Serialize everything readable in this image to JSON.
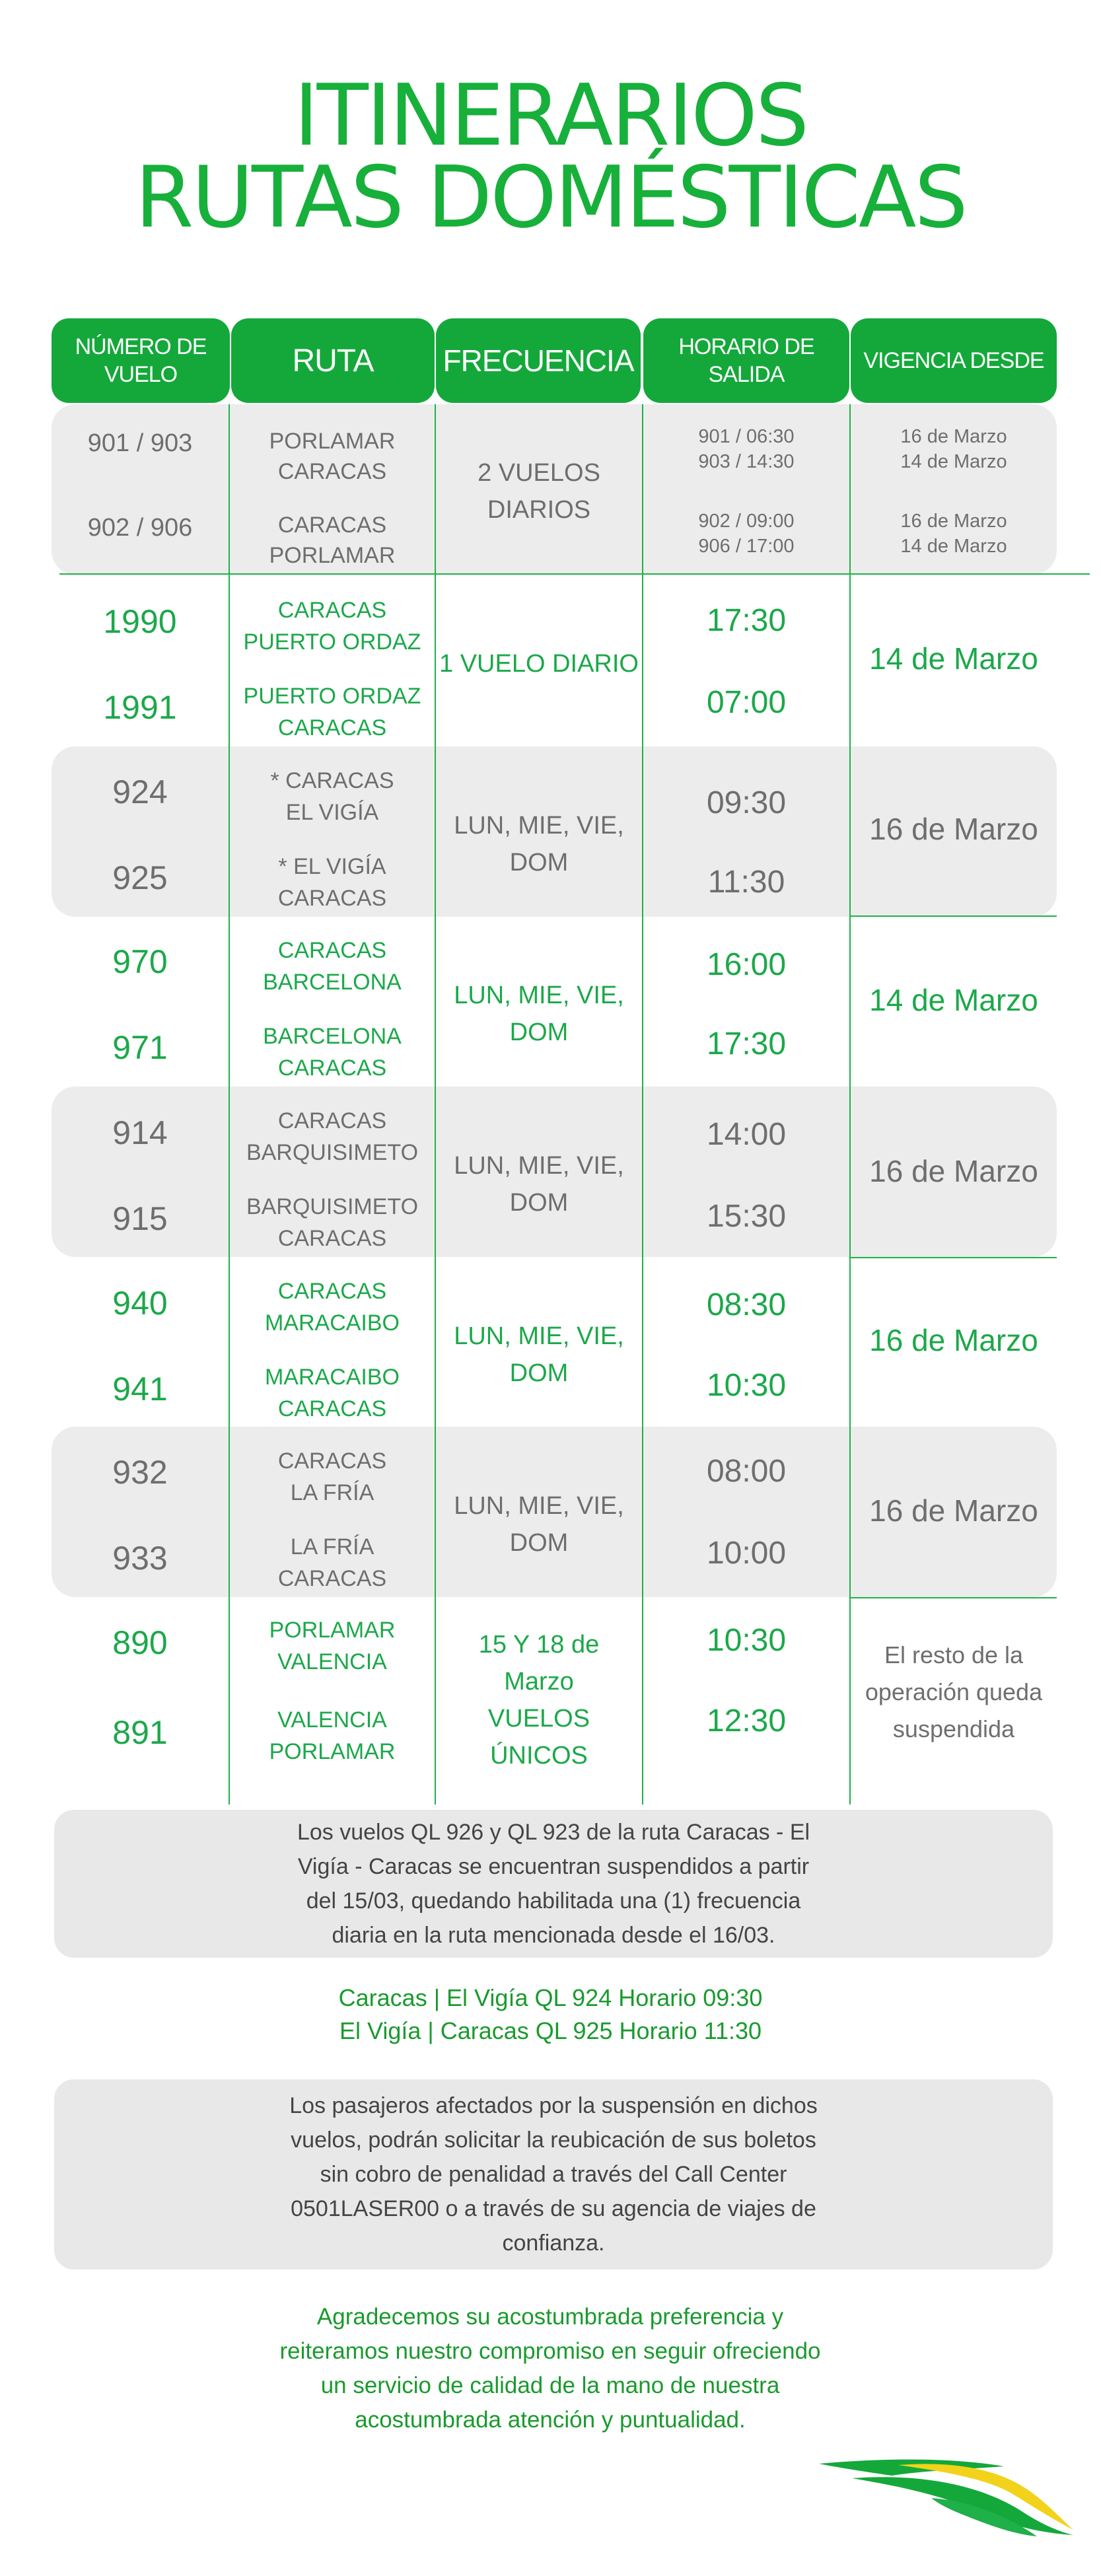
{
  "title": {
    "line1": "ITINERARIOS",
    "line2": "RUTAS DOMÉSTICAS"
  },
  "headers": {
    "flight_l1": "NÚMERO DE",
    "flight_l2": "VUELO",
    "route": "RUTA",
    "frequency": "FRECUENCIA",
    "time_l1": "HORARIO DE",
    "time_l2": "SALIDA",
    "validity": "VIGENCIA DESDE"
  },
  "rows": {
    "r0": {
      "f1": "901 / 903",
      "f2": "902 / 906",
      "a1": "PORLAMAR",
      "a2": "CARACAS",
      "b1": "CARACAS",
      "b2": "PORLAMAR",
      "q1": "2 VUELOS",
      "q2": "DIARIOS",
      "t1": "901 / 06:30",
      "t2": "903 / 14:30",
      "t3": "902 / 09:00",
      "t4": "906 / 17:00",
      "v1": "16 de Marzo",
      "v2": "14 de Marzo",
      "v3": "16  de Marzo",
      "v4": "14 de Marzo"
    },
    "r1": {
      "f1": "1990",
      "f2": "1991",
      "a1": "CARACAS",
      "a2": "PUERTO ORDAZ",
      "b1": "PUERTO ORDAZ",
      "b2": "CARACAS",
      "q1": "1 VUELO DIARIO",
      "t1": "17:30",
      "t2": "07:00",
      "v1": "14 de Marzo"
    },
    "r2": {
      "f1": "924",
      "f2": "925",
      "a1": "* CARACAS",
      "a2": "EL VIGÍA",
      "b1": "* EL VIGÍA",
      "b2": "CARACAS",
      "q1": "LUN, MIE, VIE,",
      "q2": "DOM",
      "t1": "09:30",
      "t2": "11:30",
      "v1": "16 de Marzo"
    },
    "r3": {
      "f1": "970",
      "f2": "971",
      "a1": "CARACAS",
      "a2": "BARCELONA",
      "b1": "BARCELONA",
      "b2": "CARACAS",
      "q1": "LUN, MIE, VIE,",
      "q2": "DOM",
      "t1": "16:00",
      "t2": "17:30",
      "v1": "14 de Marzo"
    },
    "r4": {
      "f1": "914",
      "f2": "915",
      "a1": "CARACAS",
      "a2": "BARQUISIMETO",
      "b1": "BARQUISIMETO",
      "b2": "CARACAS",
      "q1": "LUN, MIE, VIE,",
      "q2": "DOM",
      "t1": "14:00",
      "t2": "15:30",
      "v1": "16 de Marzo"
    },
    "r5": {
      "f1": "940",
      "f2": "941",
      "a1": "CARACAS",
      "a2": "MARACAIBO",
      "b1": "MARACAIBO",
      "b2": "CARACAS",
      "q1": "LUN, MIE, VIE,",
      "q2": "DOM",
      "t1": "08:30",
      "t2": "10:30",
      "v1": "16 de Marzo"
    },
    "r6": {
      "f1": "932",
      "f2": "933",
      "a1": "CARACAS",
      "a2": "LA FRÍA",
      "b1": "LA FRÍA",
      "b2": "CARACAS",
      "q1": "LUN, MIE, VIE,",
      "q2": "DOM",
      "t1": "08:00",
      "t2": "10:00",
      "v1": "16 de Marzo"
    },
    "r7": {
      "f1": "890",
      "f2": "891",
      "a1": "PORLAMAR",
      "a2": "VALENCIA",
      "b1": "VALENCIA",
      "b2": "PORLAMAR",
      "q1": "15 Y 18 de",
      "q2": "Marzo",
      "q3": "VUELOS ÚNICOS",
      "t1": "10:30",
      "t2": "12:30",
      "v1": "El resto de la",
      "v2": "operación queda",
      "v3": "suspendida"
    }
  },
  "notice1": {
    "l1": "Los vuelos QL 926 y QL 923 de la ruta Caracas - El",
    "l2": "Vigía  - Caracas se encuentran suspendidos a partir",
    "l3": "del 15/03, quedando habilitada una (1) frecuencia",
    "l4": "diaria en la  ruta  mencionada desde el 16/03."
  },
  "schedule": {
    "l1": "Caracas | El Vigía QL 924 Horario 09:30",
    "l2": "El Vigía | Caracas QL 925 Horario 11:30"
  },
  "notice2": {
    "l1": "Los pasajeros afectados por la suspensión en dichos",
    "l2": "vuelos, podrán solicitar la reubicación de sus boletos",
    "l3": "sin cobro de penalidad a través del  Call Center",
    "l4": "0501LASER00 o a través de su agencia de viajes de",
    "l5": "confianza."
  },
  "closing": {
    "l1": "Agradecemos su acostumbrada preferencia y",
    "l2": "reiteramos nuestro compromiso en seguir ofreciendo",
    "l3": "un servicio de calidad de la mano de nuestra",
    "l4": "acostumbrada atención y  puntualidad."
  },
  "colors": {
    "green": "#14a83a",
    "text_green": "#1ca84a",
    "gray_band": "#ececec",
    "logo_yellow": "#f2d21b"
  },
  "logo": {
    "icon": "laser-airlines-swoosh-logo"
  }
}
